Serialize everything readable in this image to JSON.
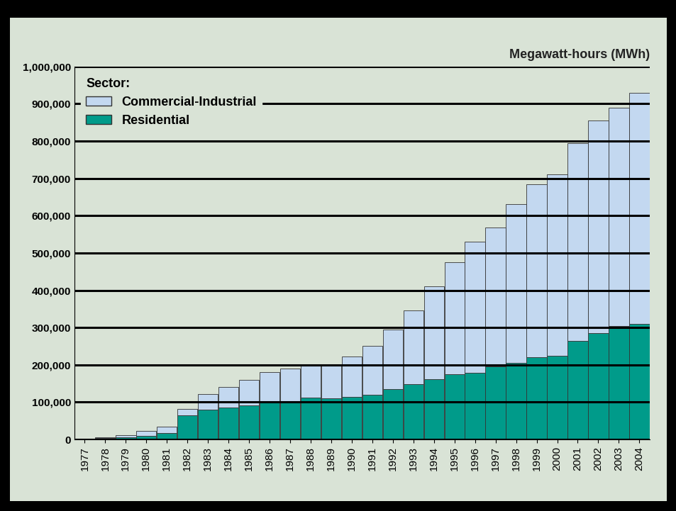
{
  "chart_data": {
    "type": "bar",
    "stacked": true,
    "grid": true,
    "legend": "upper left",
    "legend_title": "Sector:",
    "y_label": "Megawatt-hours (MWh)",
    "categories": [
      "1977",
      "1978",
      "1979",
      "1980",
      "1981",
      "1982",
      "1983",
      "1984",
      "1985",
      "1986",
      "1987",
      "1988",
      "1989",
      "1990",
      "1991",
      "1992",
      "1993",
      "1994",
      "1995",
      "1996",
      "1997",
      "1998",
      "1999",
      "2000",
      "2001",
      "2002",
      "2003",
      "2004"
    ],
    "series": [
      {
        "name": "Residential",
        "color": "#009b8a",
        "values": [
          1000,
          3000,
          6000,
          10000,
          18000,
          65000,
          80000,
          85000,
          92000,
          100000,
          102000,
          112000,
          110000,
          115000,
          120000,
          135000,
          148000,
          162000,
          175000,
          178000,
          195000,
          205000,
          220000,
          225000,
          265000,
          285000,
          305000,
          310000
        ]
      },
      {
        "name": "Commercial-Industrial",
        "color": "#c3d8f0",
        "values": [
          1000,
          3000,
          6000,
          12000,
          17000,
          17000,
          42000,
          55000,
          68000,
          80000,
          88000,
          86000,
          90000,
          107000,
          130000,
          160000,
          197000,
          248000,
          300000,
          352000,
          373000,
          425000,
          465000,
          485000,
          530000,
          570000,
          585000,
          620000
        ]
      }
    ],
    "ylim": [
      0,
      1000000
    ],
    "yticks": [
      0,
      {
        "value": 100000,
        "label": "100,000"
      },
      {
        "value": 200000,
        "label": "200,000"
      },
      {
        "value": 300000,
        "label": "300,000"
      },
      {
        "value": 400000,
        "label": "400,000"
      },
      {
        "value": 500000,
        "label": "500,000"
      },
      {
        "value": 600000,
        "label": "600,000"
      },
      {
        "value": 700000,
        "label": "700,000"
      },
      {
        "value": 800000,
        "label": "800,000"
      },
      {
        "value": 900000,
        "label": "900,000"
      },
      {
        "value": 1000000,
        "label": "1,000,000"
      }
    ]
  }
}
